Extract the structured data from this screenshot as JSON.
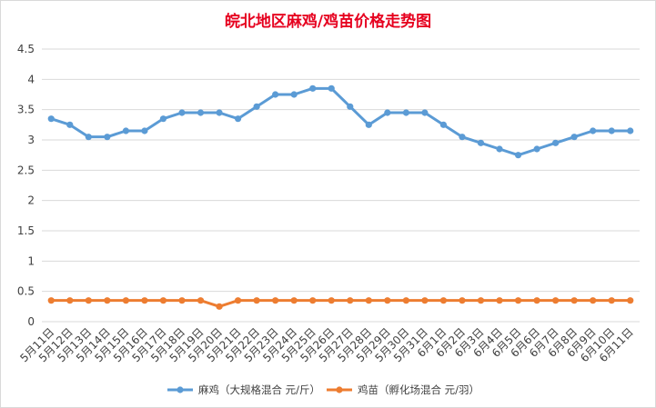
{
  "chart_data": {
    "type": "line",
    "title": "皖北地区麻鸡/鸡苗价格走势图",
    "xlabel": "",
    "ylabel": "",
    "ylim": [
      0,
      4.5
    ],
    "yticks": [
      "0",
      "0.5",
      "1",
      "1.5",
      "2",
      "2.5",
      "3",
      "3.5",
      "4",
      "4.5"
    ],
    "grid": true,
    "legend_position": "bottom",
    "categories": [
      "5月11日",
      "5月12日",
      "5月13日",
      "5月14日",
      "5月15日",
      "5月16日",
      "5月17日",
      "5月18日",
      "5月19日",
      "5月20日",
      "5月21日",
      "5月22日",
      "5月23日",
      "5月24日",
      "5月25日",
      "5月26日",
      "5月27日",
      "5月28日",
      "5月29日",
      "5月30日",
      "5月31日",
      "6月1日",
      "6月2日",
      "6月3日",
      "6月4日",
      "6月5日",
      "6月6日",
      "6月7日",
      "6月8日",
      "6月9日",
      "6月10日",
      "6月11日"
    ],
    "series": [
      {
        "name": "麻鸡（大规格混合 元/斤）",
        "color": "#5b9bd5",
        "values": [
          3.35,
          3.25,
          3.05,
          3.05,
          3.15,
          3.15,
          3.35,
          3.45,
          3.45,
          3.45,
          3.35,
          3.55,
          3.75,
          3.75,
          3.85,
          3.85,
          3.55,
          3.25,
          3.45,
          3.45,
          3.45,
          3.25,
          3.05,
          2.95,
          2.85,
          2.75,
          2.85,
          2.95,
          3.05,
          3.15,
          3.15,
          3.15
        ]
      },
      {
        "name": "鸡苗（孵化场混合 元/羽）",
        "color": "#ed7d31",
        "values": [
          0.35,
          0.35,
          0.35,
          0.35,
          0.35,
          0.35,
          0.35,
          0.35,
          0.35,
          0.25,
          0.35,
          0.35,
          0.35,
          0.35,
          0.35,
          0.35,
          0.35,
          0.35,
          0.35,
          0.35,
          0.35,
          0.35,
          0.35,
          0.35,
          0.35,
          0.35,
          0.35,
          0.35,
          0.35,
          0.35,
          0.35,
          0.35
        ]
      }
    ]
  }
}
